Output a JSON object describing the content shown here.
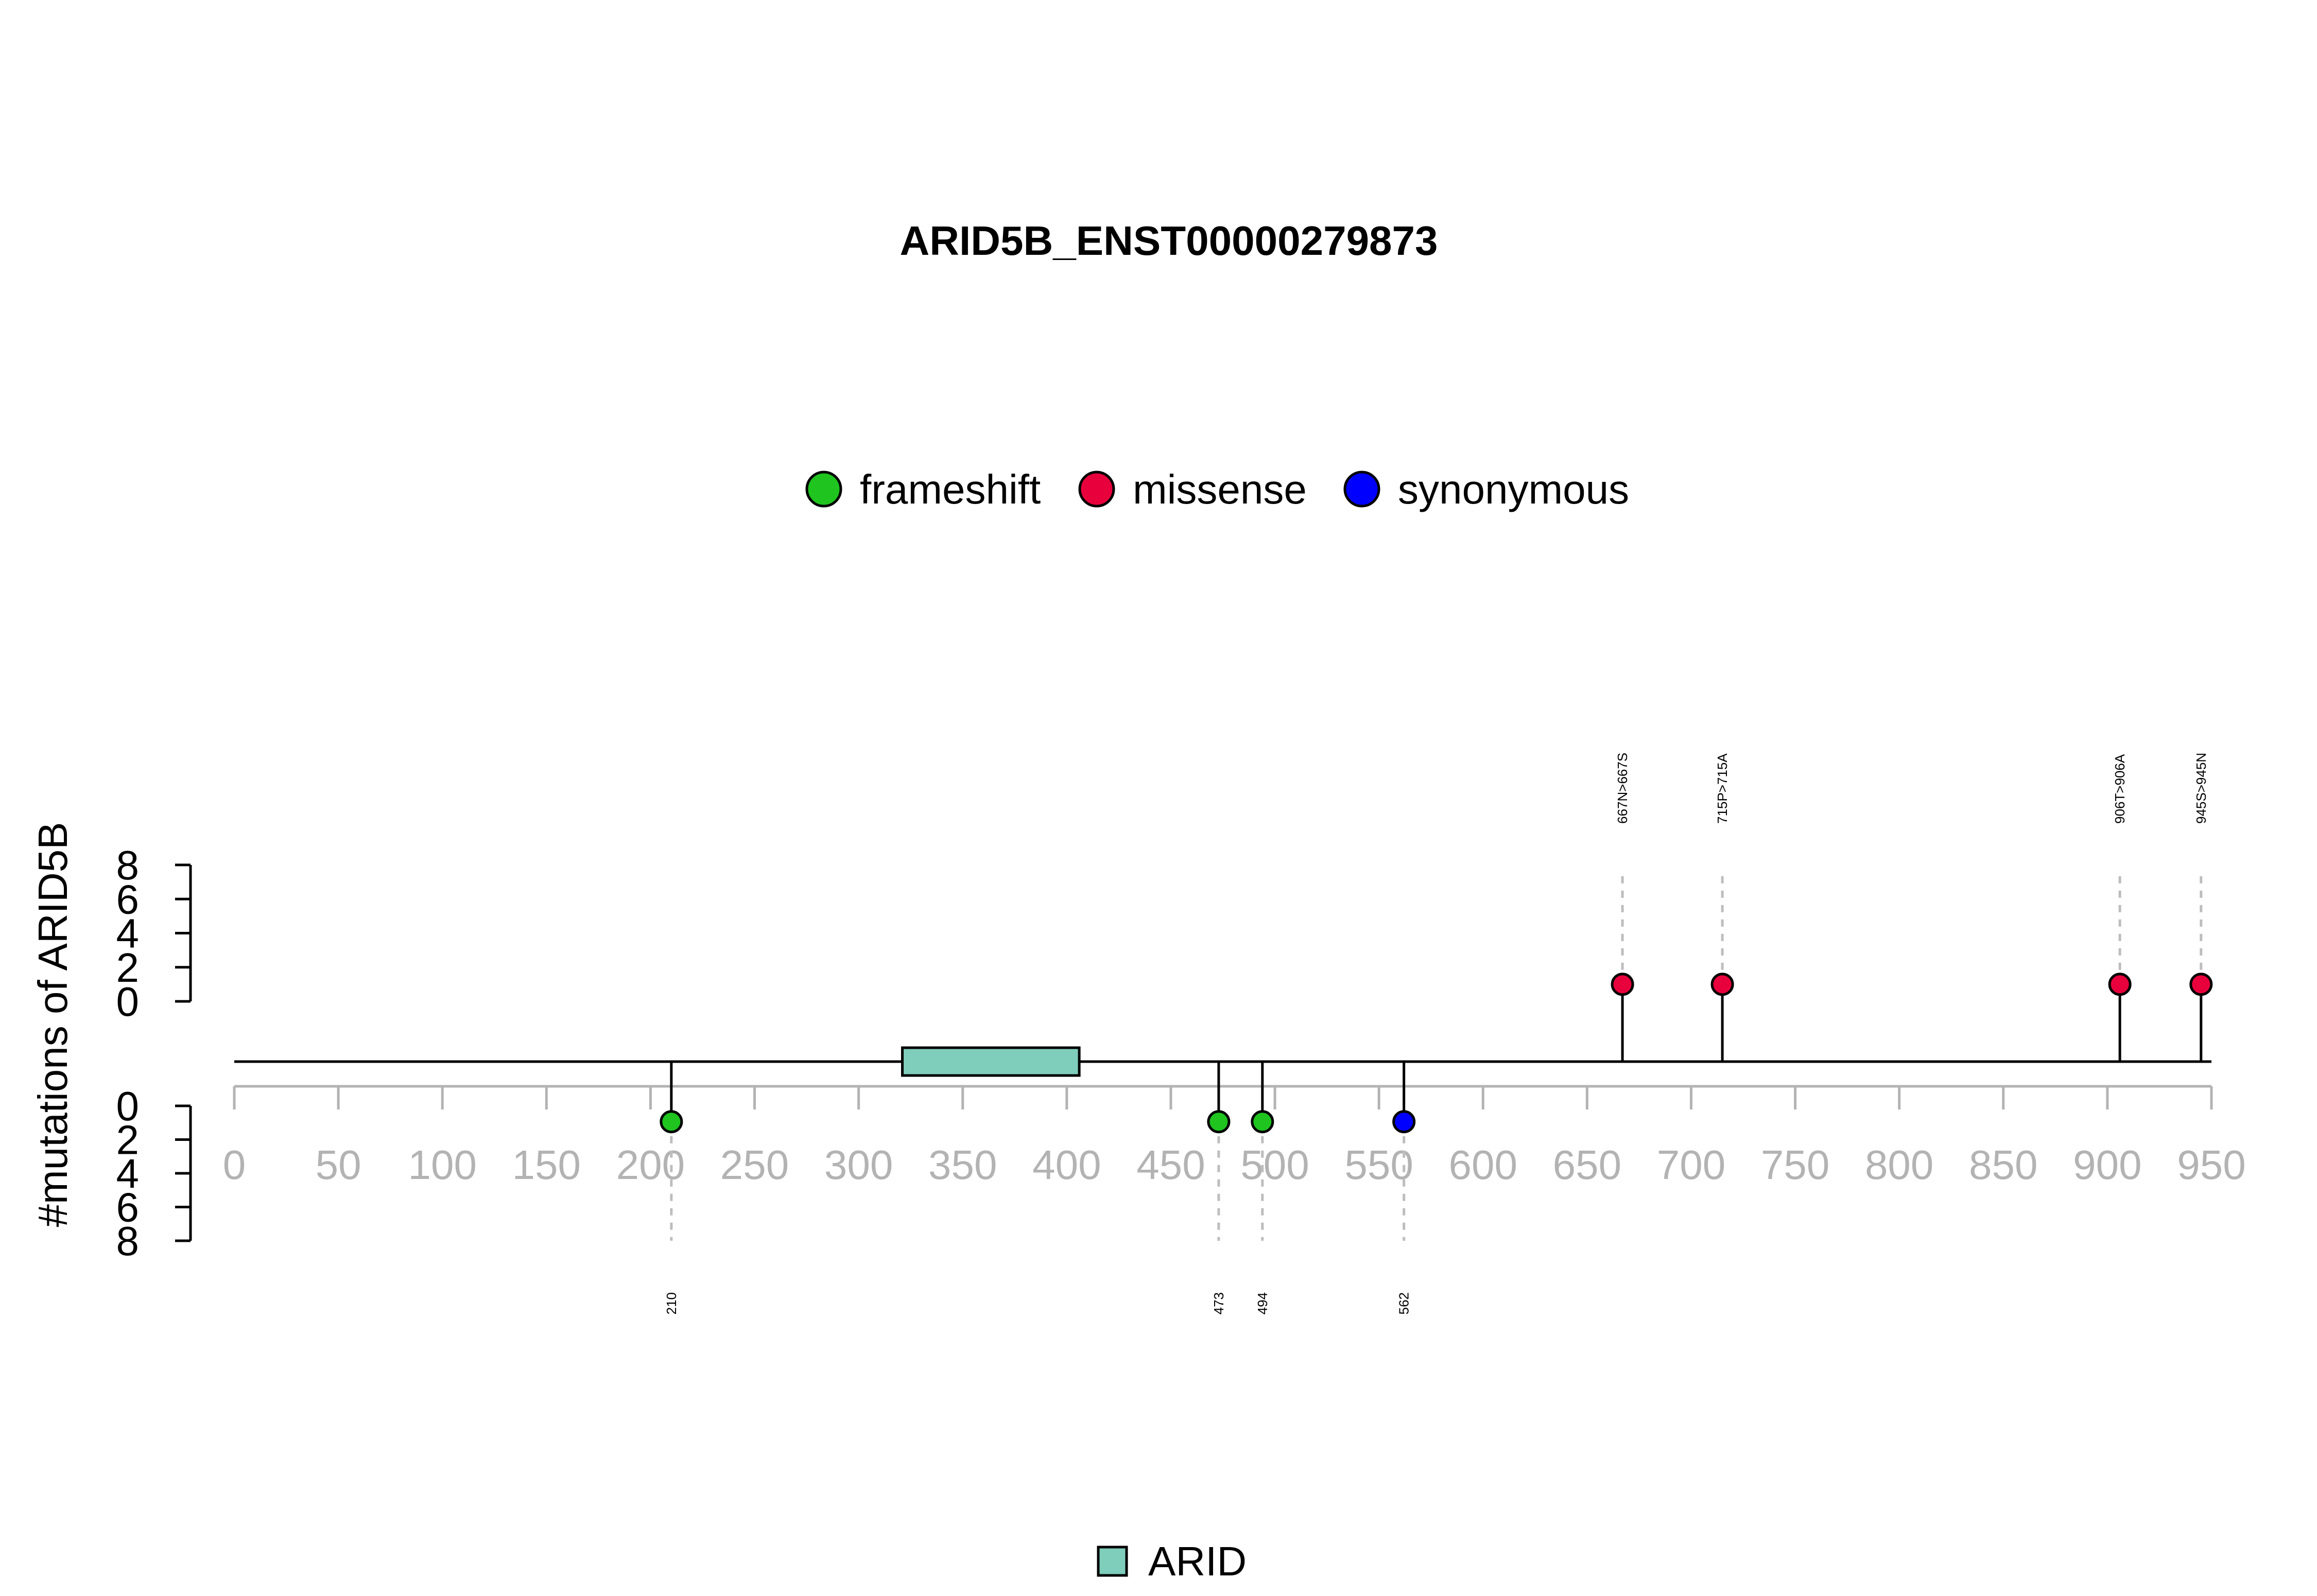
{
  "chart_data": {
    "type": "lollipop",
    "title": "ARID5B_ENST00000279873",
    "ylabel": "#mutations of ARID5B",
    "protein_length": 950,
    "xlim": [
      0,
      950
    ],
    "x_ticks": [
      0,
      50,
      100,
      150,
      200,
      250,
      300,
      350,
      400,
      450,
      500,
      550,
      600,
      650,
      700,
      750,
      800,
      850,
      900,
      950
    ],
    "x_tick_labels": [
      "0",
      "50",
      "100",
      "150",
      "200",
      "250",
      "300",
      "350",
      "400",
      "450",
      "500",
      "550",
      "600",
      "650",
      "700",
      "750",
      "800",
      "850",
      "900",
      "950"
    ],
    "y_ticks_top": [
      0,
      2,
      4,
      6,
      8
    ],
    "y_tick_labels_top": [
      "0",
      "2",
      "4",
      "6",
      "8"
    ],
    "y_ticks_bottom": [
      0,
      2,
      4,
      6,
      8
    ],
    "y_tick_labels_bottom": [
      "0",
      "2",
      "4",
      "6",
      "8"
    ],
    "ylim": [
      0,
      8
    ],
    "legend": [
      {
        "name": "frameshift",
        "color": "#1fc41f"
      },
      {
        "name": "missense",
        "color": "#e8003d"
      },
      {
        "name": "synonymous",
        "color": "#0000ff"
      }
    ],
    "domains": [
      {
        "name": "ARID",
        "start": 321,
        "end": 406,
        "color": "#7fcdbb"
      }
    ],
    "domain_legend": [
      {
        "name": "ARID",
        "color": "#7fcdbb"
      }
    ],
    "mutations_top": [
      {
        "position": 667,
        "count": 1,
        "type": "missense",
        "label": "667N>667S"
      },
      {
        "position": 715,
        "count": 1,
        "type": "missense",
        "label": "715P>715A"
      },
      {
        "position": 906,
        "count": 1,
        "type": "missense",
        "label": "906T>906A"
      },
      {
        "position": 945,
        "count": 1,
        "type": "missense",
        "label": "945S>945N"
      }
    ],
    "mutations_bottom": [
      {
        "position": 210,
        "count": 1,
        "type": "frameshift",
        "label": "210"
      },
      {
        "position": 473,
        "count": 1,
        "type": "frameshift",
        "label": "473"
      },
      {
        "position": 494,
        "count": 1,
        "type": "frameshift",
        "label": "494"
      },
      {
        "position": 562,
        "count": 1,
        "type": "synonymous",
        "label": "562"
      }
    ],
    "colors": {
      "frameshift": "#1fc41f",
      "missense": "#e8003d",
      "synonymous": "#0000ff"
    }
  }
}
